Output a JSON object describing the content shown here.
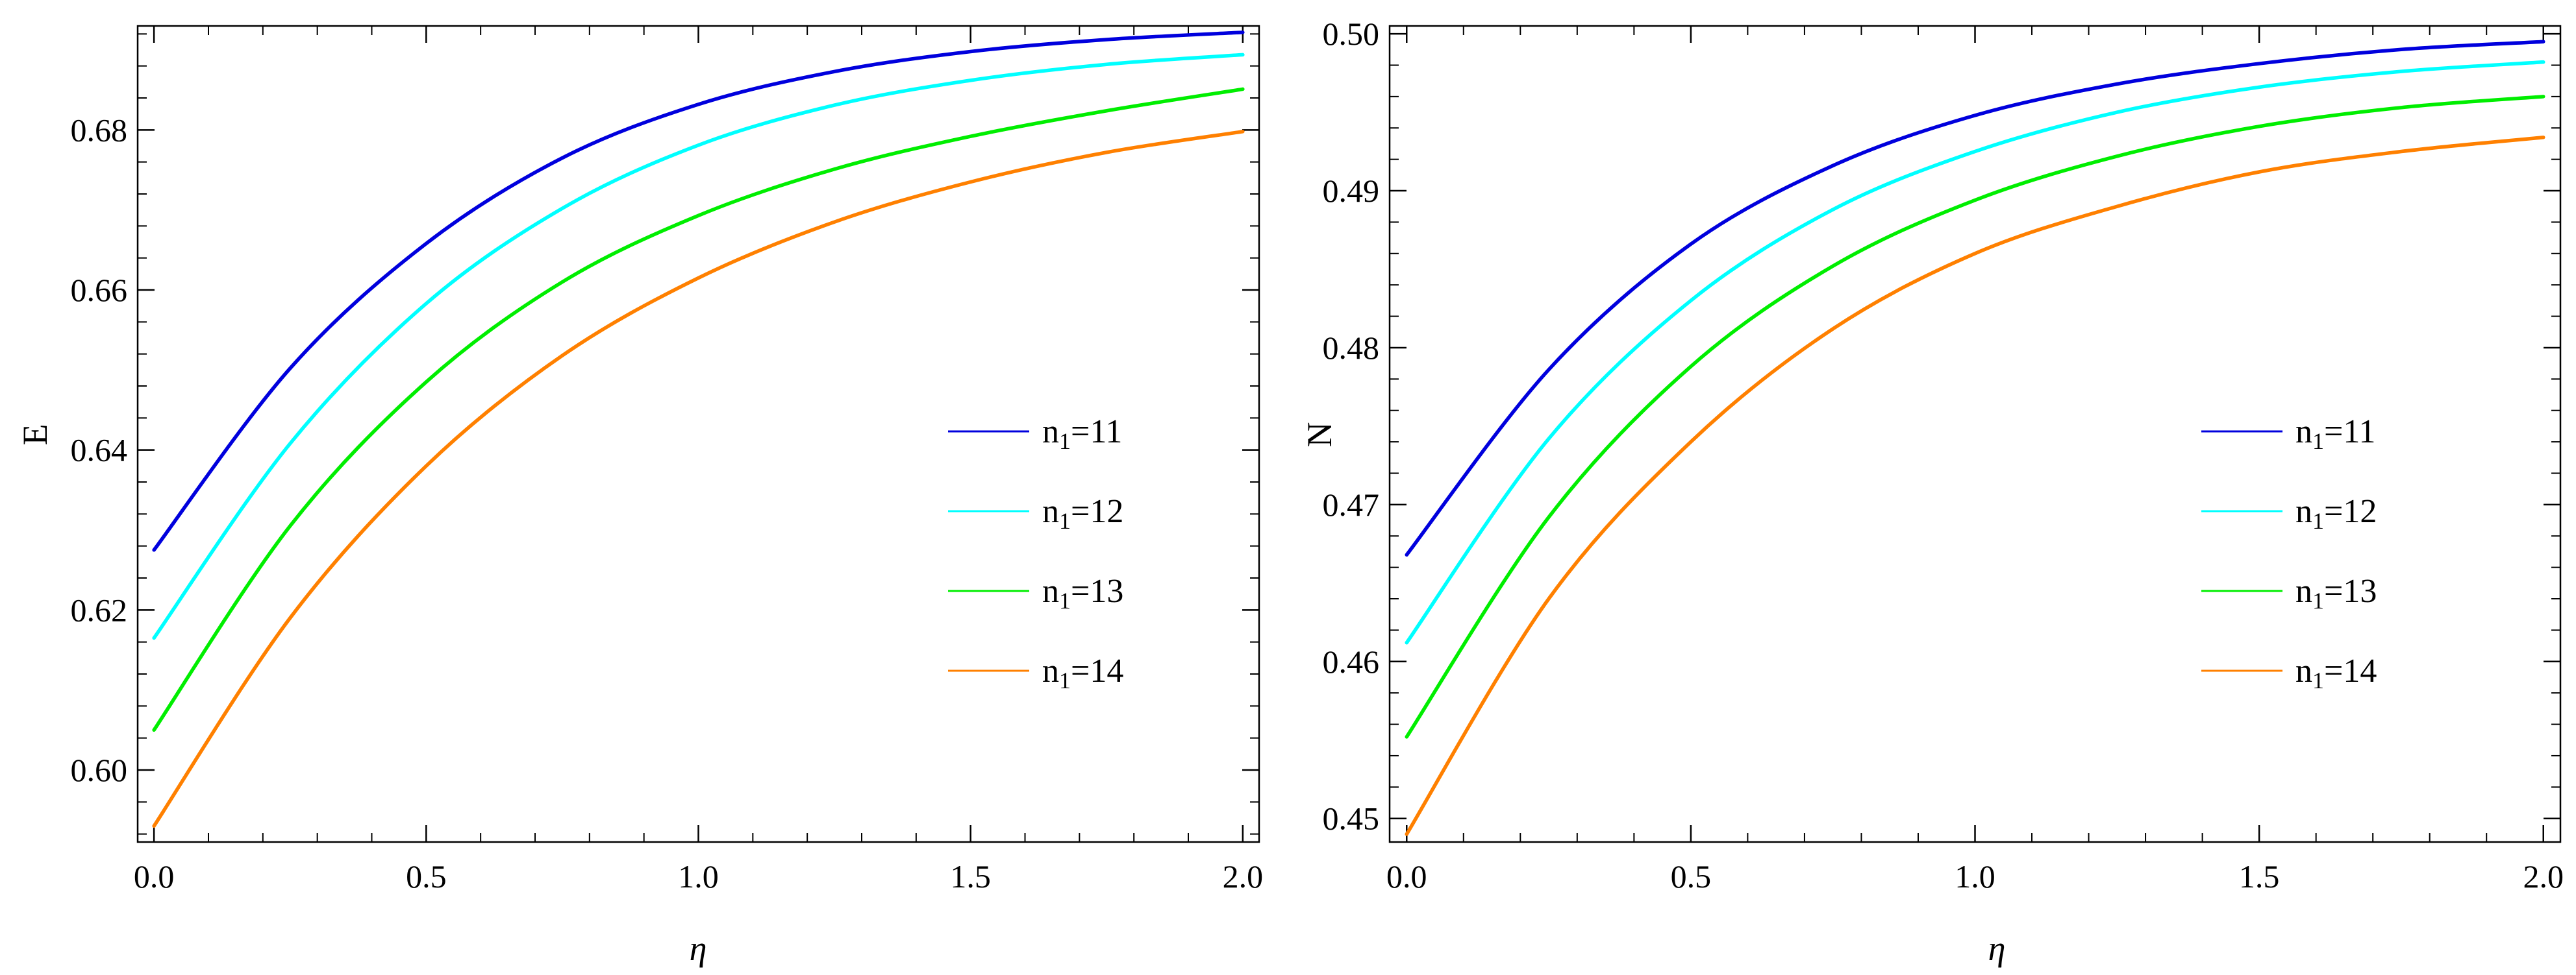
{
  "chart_data": [
    {
      "type": "line",
      "xlabel": "η",
      "ylabel": "E",
      "xlim": [
        -0.03,
        2.03
      ],
      "ylim": [
        0.591,
        0.693
      ],
      "xticks": [
        0.0,
        0.5,
        1.0,
        1.5,
        2.0
      ],
      "xtick_labels": [
        "0.0",
        "0.5",
        "1.0",
        "1.5",
        "2.0"
      ],
      "yticks": [
        0.6,
        0.62,
        0.64,
        0.66,
        0.68
      ],
      "ytick_labels": [
        "0.60",
        "0.62",
        "0.64",
        "0.66",
        "0.68"
      ],
      "legend_position": "center-right",
      "series": [
        {
          "name": "n1=11",
          "legend_base": "n",
          "legend_sub": "1",
          "legend_value": "=11",
          "color": "#0000dd",
          "x": [
            0.0,
            0.25,
            0.5,
            0.75,
            1.0,
            1.25,
            1.5,
            1.75,
            2.0
          ],
          "y": [
            0.6275,
            0.6502,
            0.6658,
            0.6765,
            0.6832,
            0.6873,
            0.6898,
            0.6913,
            0.6922
          ]
        },
        {
          "name": "n1=12",
          "legend_base": "n",
          "legend_sub": "1",
          "legend_value": "=12",
          "color": "#00ffff",
          "x": [
            0.0,
            0.25,
            0.5,
            0.75,
            1.0,
            1.25,
            1.5,
            1.75,
            2.0
          ],
          "y": [
            0.6165,
            0.6408,
            0.6583,
            0.6702,
            0.6781,
            0.6831,
            0.6862,
            0.6882,
            0.6894
          ]
        },
        {
          "name": "n1=13",
          "legend_base": "n",
          "legend_sub": "1",
          "legend_value": "=13",
          "color": "#00ee00",
          "x": [
            0.0,
            0.25,
            0.5,
            0.75,
            1.0,
            1.25,
            1.5,
            1.75,
            2.0
          ],
          "y": [
            0.605,
            0.6305,
            0.6485,
            0.661,
            0.6693,
            0.6751,
            0.6792,
            0.6824,
            0.6851
          ]
        },
        {
          "name": "n1=14",
          "legend_base": "n",
          "legend_sub": "1",
          "legend_value": "=14",
          "color": "#ff8000",
          "x": [
            0.0,
            0.25,
            0.5,
            0.75,
            1.0,
            1.25,
            1.5,
            1.75,
            2.0
          ],
          "y": [
            0.593,
            0.619,
            0.638,
            0.6518,
            0.6615,
            0.6685,
            0.6735,
            0.6772,
            0.6798
          ]
        }
      ]
    },
    {
      "type": "line",
      "xlabel": "η",
      "ylabel": "N",
      "xlim": [
        -0.03,
        2.03
      ],
      "ylim": [
        0.4485,
        0.5005
      ],
      "xticks": [
        0.0,
        0.5,
        1.0,
        1.5,
        2.0
      ],
      "xtick_labels": [
        "0.0",
        "0.5",
        "1.0",
        "1.5",
        "2.0"
      ],
      "yticks": [
        0.45,
        0.46,
        0.47,
        0.48,
        0.49,
        0.5
      ],
      "ytick_labels": [
        "0.45",
        "0.46",
        "0.47",
        "0.48",
        "0.49",
        "0.50"
      ],
      "legend_position": "center-right",
      "series": [
        {
          "name": "n1=11",
          "legend_base": "n",
          "legend_sub": "1",
          "legend_value": "=11",
          "color": "#0000dd",
          "x": [
            0.0,
            0.25,
            0.5,
            0.75,
            1.0,
            1.25,
            1.5,
            1.75,
            2.0
          ],
          "y": [
            0.4668,
            0.4786,
            0.4866,
            0.4916,
            0.4948,
            0.4968,
            0.4981,
            0.499,
            0.4995
          ]
        },
        {
          "name": "n1=12",
          "legend_base": "n",
          "legend_sub": "1",
          "legend_value": "=12",
          "color": "#00ffff",
          "x": [
            0.0,
            0.25,
            0.5,
            0.75,
            1.0,
            1.25,
            1.5,
            1.75,
            2.0
          ],
          "y": [
            0.4612,
            0.4742,
            0.483,
            0.4888,
            0.4925,
            0.495,
            0.4966,
            0.4976,
            0.4982
          ]
        },
        {
          "name": "n1=13",
          "legend_base": "n",
          "legend_sub": "1",
          "legend_value": "=13",
          "color": "#00ee00",
          "x": [
            0.0,
            0.25,
            0.5,
            0.75,
            1.0,
            1.25,
            1.5,
            1.75,
            2.0
          ],
          "y": [
            0.4552,
            0.4692,
            0.4788,
            0.4852,
            0.4894,
            0.4922,
            0.4941,
            0.4953,
            0.496
          ]
        },
        {
          "name": "n1=14",
          "legend_base": "n",
          "legend_sub": "1",
          "legend_value": "=14",
          "color": "#ff8000",
          "x": [
            0.0,
            0.25,
            0.5,
            0.75,
            1.0,
            1.25,
            1.5,
            1.75,
            2.0
          ],
          "y": [
            0.449,
            0.464,
            0.474,
            0.4812,
            0.486,
            0.489,
            0.4912,
            0.4925,
            0.4934
          ]
        }
      ]
    }
  ]
}
